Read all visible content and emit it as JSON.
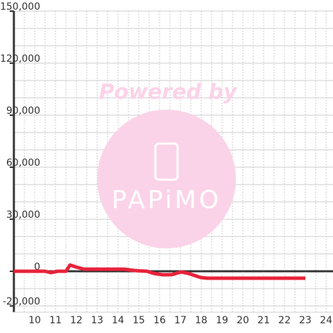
{
  "chart_data": {
    "type": "line",
    "watermark": {
      "text": "Powered by",
      "logo": "PAPiMO"
    },
    "x": [
      9,
      10.5,
      10.77,
      11.1,
      11.5,
      11.7,
      12,
      12.37,
      14.3,
      14.8,
      15.4,
      15.7,
      16.13,
      16.57,
      17.03,
      17.37,
      17.97,
      18.3,
      23
    ],
    "series": [
      {
        "color": "#e8223a",
        "values": [
          0,
          0,
          -800,
          0,
          0,
          3600,
          2400,
          1200,
          1200,
          400,
          0,
          -1200,
          -2000,
          -2000,
          -400,
          -1200,
          -3600,
          -4000,
          -4000
        ]
      }
    ],
    "xlim": [
      9,
      24.33
    ],
    "xticks": [
      10,
      11,
      12,
      13,
      14,
      15,
      16,
      17,
      18,
      19,
      20,
      21,
      22,
      23,
      24
    ],
    "x_minor_ticks": [
      9.5,
      10.5,
      11.5,
      12.5,
      13.5,
      14.5,
      15.5,
      16.5,
      17.5,
      18.5,
      19.5,
      20.5,
      21.5,
      22.5,
      23.5
    ],
    "ylim": [
      -23600,
      150000
    ],
    "yticks": [
      {
        "value": -20000,
        "label": "-20,000"
      },
      0,
      {
        "value": 30000,
        "label": "30,000"
      },
      {
        "value": 60000,
        "label": "60,000"
      },
      {
        "value": 90000,
        "label": "90,000"
      },
      {
        "value": 120000,
        "label": "120,000"
      },
      {
        "value": 150000,
        "label": "150,000"
      }
    ],
    "y_minor_ticks": [
      -10000,
      10000,
      20000,
      40000,
      50000,
      70000,
      80000,
      100000,
      110000,
      130000,
      140000
    ],
    "grid": true
  }
}
